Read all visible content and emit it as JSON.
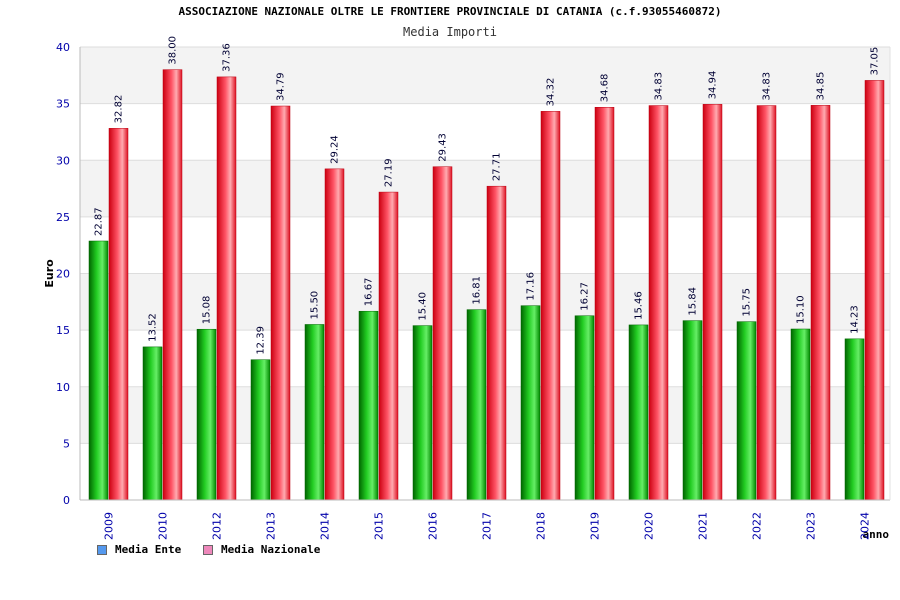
{
  "chart_data": {
    "type": "bar",
    "title": "ASSOCIAZIONE NAZIONALE OLTRE LE FRONTIERE PROVINCIALE DI CATANIA (c.f.93055460872)",
    "subtitle": "Media Importi",
    "ylabel": "Euro",
    "xlabel": "anno",
    "ylim": [
      0,
      40
    ],
    "yticks": [
      0,
      5,
      10,
      15,
      20,
      25,
      30,
      35,
      40
    ],
    "categories": [
      "2009",
      "2010",
      "2012",
      "2013",
      "2014",
      "2015",
      "2016",
      "2017",
      "2018",
      "2019",
      "2020",
      "2021",
      "2022",
      "2023",
      "2024"
    ],
    "series": [
      {
        "name": "Media Ente",
        "values": [
          22.87,
          13.52,
          15.08,
          12.39,
          15.5,
          16.67,
          15.4,
          16.81,
          17.16,
          16.27,
          15.46,
          15.84,
          15.75,
          15.1,
          14.23
        ],
        "labels": [
          "22.87",
          "13.52",
          "15.08",
          "12.39",
          "15.50",
          "16.67",
          "15.40",
          "16.81",
          "17.16",
          "16.27",
          "15.46",
          "15.84",
          "15.75",
          "15.10",
          "14.23"
        ]
      },
      {
        "name": "Media Nazionale",
        "values": [
          32.82,
          38.0,
          37.36,
          34.79,
          29.24,
          27.19,
          29.43,
          27.71,
          34.32,
          34.68,
          34.83,
          34.94,
          34.83,
          34.85,
          37.05
        ],
        "labels": [
          "32.82",
          "38.00",
          "37.36",
          "34.79",
          "29.24",
          "27.19",
          "29.43",
          "27.71",
          "34.32",
          "34.68",
          "34.83",
          "34.94",
          "34.83",
          "34.85",
          "37.05"
        ]
      }
    ],
    "colors": {
      "ente": "#00aa00",
      "ente_dark": "#006600",
      "nazionale": "#ee2233",
      "nazionale_dark": "#bb0011",
      "legend_ente": "#5599ee",
      "legend_nazionale": "#ee88bb",
      "axis_text": "#0000aa"
    },
    "legend": [
      {
        "label": "Media Ente"
      },
      {
        "label": "Media Nazionale"
      }
    ],
    "legend_position": "bottom-left",
    "grid": true
  }
}
